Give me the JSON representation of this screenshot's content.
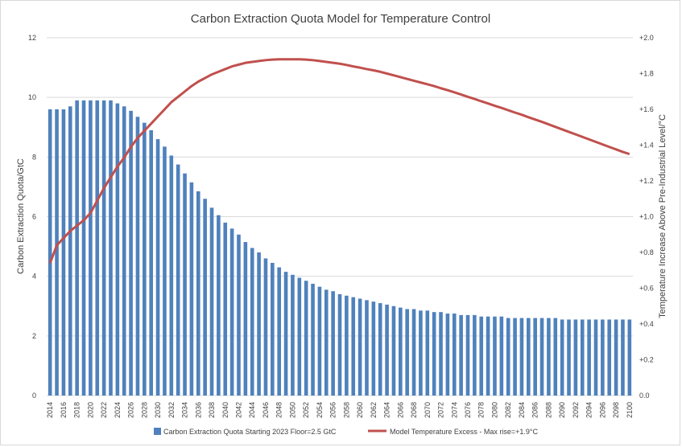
{
  "chart_data": {
    "type": "bar+line",
    "title": "Carbon Extraction Quota Model for Temperature Control",
    "ylabel_left": "Carbon Extraction Quota/GtC",
    "ylabel_right": "Temperature Increase Above Pre-Industrial Level/°C",
    "ylim_left": [
      0,
      12
    ],
    "ylim_right": [
      0.0,
      2.0
    ],
    "yticks_left": [
      "0",
      "2",
      "4",
      "6",
      "8",
      "10",
      "12"
    ],
    "yticks_right": [
      "0.0",
      "+0.2",
      "+0.4",
      "+0.6",
      "+0.8",
      "+1.0",
      "+1.2",
      "+1.4",
      "+1.6",
      "+1.8",
      "+2.0"
    ],
    "grid": "horizontal",
    "legend_position": "bottom",
    "x": [
      2014,
      2015,
      2016,
      2017,
      2018,
      2019,
      2020,
      2021,
      2022,
      2023,
      2024,
      2025,
      2026,
      2027,
      2028,
      2029,
      2030,
      2031,
      2032,
      2033,
      2034,
      2035,
      2036,
      2037,
      2038,
      2039,
      2040,
      2041,
      2042,
      2043,
      2044,
      2045,
      2046,
      2047,
      2048,
      2049,
      2050,
      2051,
      2052,
      2053,
      2054,
      2055,
      2056,
      2057,
      2058,
      2059,
      2060,
      2061,
      2062,
      2063,
      2064,
      2065,
      2066,
      2067,
      2068,
      2069,
      2070,
      2071,
      2072,
      2073,
      2074,
      2075,
      2076,
      2077,
      2078,
      2079,
      2080,
      2081,
      2082,
      2083,
      2084,
      2085,
      2086,
      2087,
      2088,
      2089,
      2090,
      2091,
      2092,
      2093,
      2094,
      2095,
      2096,
      2097,
      2098,
      2099,
      2100
    ],
    "xticks": [
      "2014",
      "2016",
      "2018",
      "2020",
      "2022",
      "2024",
      "2026",
      "2028",
      "2030",
      "2032",
      "2034",
      "2036",
      "2038",
      "2040",
      "2042",
      "2044",
      "2046",
      "2048",
      "2050",
      "2052",
      "2054",
      "2056",
      "2058",
      "2060",
      "2062",
      "2064",
      "2066",
      "2068",
      "2070",
      "2072",
      "2074",
      "2076",
      "2078",
      "2080",
      "2082",
      "2084",
      "2086",
      "2088",
      "2090",
      "2092",
      "2094",
      "2096",
      "2098",
      "2100"
    ],
    "series": [
      {
        "name": "Carbon Extraction Quota Starting 2023 Floor=2.5 GtC",
        "type": "bar",
        "axis": "left",
        "color": "#4f81bd",
        "values": [
          9.6,
          9.6,
          9.6,
          9.7,
          9.9,
          9.9,
          9.9,
          9.9,
          9.9,
          9.9,
          9.8,
          9.7,
          9.55,
          9.35,
          9.15,
          8.9,
          8.6,
          8.35,
          8.05,
          7.75,
          7.45,
          7.15,
          6.85,
          6.6,
          6.3,
          6.05,
          5.8,
          5.6,
          5.4,
          5.15,
          4.95,
          4.8,
          4.6,
          4.45,
          4.3,
          4.15,
          4.05,
          3.95,
          3.85,
          3.75,
          3.65,
          3.55,
          3.5,
          3.4,
          3.35,
          3.3,
          3.25,
          3.2,
          3.15,
          3.1,
          3.05,
          3.0,
          2.95,
          2.9,
          2.9,
          2.85,
          2.85,
          2.8,
          2.8,
          2.75,
          2.75,
          2.7,
          2.7,
          2.7,
          2.65,
          2.65,
          2.65,
          2.65,
          2.6,
          2.6,
          2.6,
          2.6,
          2.6,
          2.6,
          2.6,
          2.6,
          2.55,
          2.55,
          2.55,
          2.55,
          2.55,
          2.55,
          2.55,
          2.55,
          2.55,
          2.55,
          2.55
        ]
      },
      {
        "name": "Model Temperature Excess  - Max rise=+1.9°C",
        "type": "line",
        "axis": "right",
        "color": "#c0504d",
        "values": [
          0.74,
          0.84,
          0.88,
          0.92,
          0.95,
          0.98,
          1.02,
          1.09,
          1.16,
          1.22,
          1.28,
          1.33,
          1.39,
          1.44,
          1.48,
          1.52,
          1.56,
          1.6,
          1.64,
          1.67,
          1.7,
          1.73,
          1.755,
          1.775,
          1.795,
          1.81,
          1.825,
          1.84,
          1.85,
          1.86,
          1.865,
          1.87,
          1.875,
          1.878,
          1.88,
          1.88,
          1.88,
          1.88,
          1.878,
          1.875,
          1.87,
          1.865,
          1.86,
          1.855,
          1.848,
          1.84,
          1.833,
          1.825,
          1.818,
          1.81,
          1.8,
          1.79,
          1.78,
          1.77,
          1.76,
          1.75,
          1.74,
          1.73,
          1.718,
          1.707,
          1.695,
          1.683,
          1.67,
          1.658,
          1.645,
          1.633,
          1.62,
          1.608,
          1.595,
          1.582,
          1.57,
          1.556,
          1.543,
          1.53,
          1.516,
          1.502,
          1.488,
          1.474,
          1.46,
          1.446,
          1.432,
          1.418,
          1.404,
          1.39,
          1.376,
          1.362,
          1.35
        ]
      }
    ]
  }
}
